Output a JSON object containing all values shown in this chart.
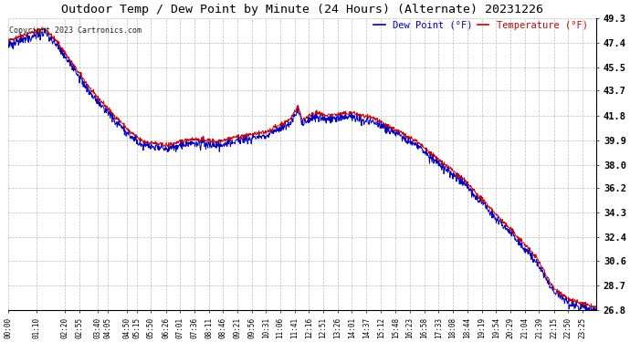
{
  "title": "Outdoor Temp / Dew Point by Minute (24 Hours) (Alternate) 20231226",
  "copyright": "Copyright 2023 Cartronics.com",
  "legend_dew": "Dew Point (°F)",
  "legend_temp": "Temperature (°F)",
  "dew_color": "#0000cc",
  "temp_color": "#cc0000",
  "ylabel_values": [
    49.3,
    47.4,
    45.5,
    43.7,
    41.8,
    39.9,
    38.0,
    36.2,
    34.3,
    32.4,
    30.6,
    28.7,
    26.8
  ],
  "ylim": [
    26.8,
    49.3
  ],
  "background_color": "#ffffff",
  "grid_color": "#aaaaaa",
  "x_tick_labels": [
    "00:00",
    "01:10",
    "02:20",
    "02:55",
    "03:40",
    "04:05",
    "04:50",
    "05:15",
    "05:50",
    "06:26",
    "07:01",
    "07:36",
    "08:11",
    "08:46",
    "09:21",
    "09:56",
    "10:31",
    "11:06",
    "11:41",
    "12:16",
    "12:51",
    "13:26",
    "14:01",
    "14:37",
    "15:12",
    "15:48",
    "16:23",
    "16:58",
    "17:33",
    "18:08",
    "18:44",
    "19:19",
    "19:54",
    "20:29",
    "21:04",
    "21:39",
    "22:15",
    "22:50",
    "23:25"
  ],
  "n_minutes": 1440,
  "figsize": [
    6.9,
    3.75
  ],
  "dpi": 100
}
